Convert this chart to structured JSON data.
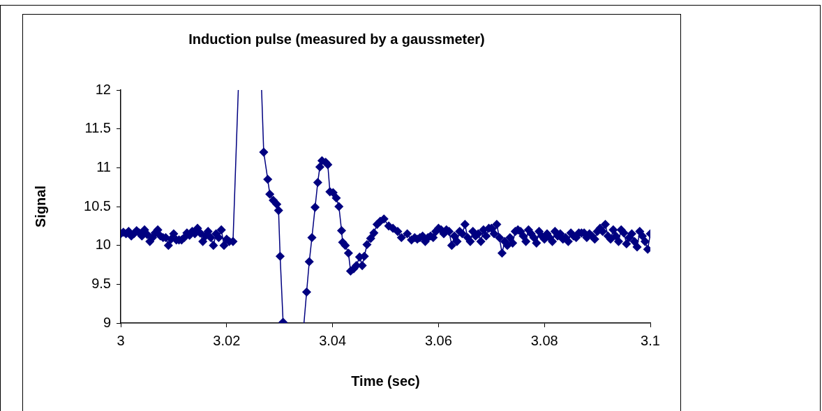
{
  "chart_data": {
    "type": "line",
    "title": "Induction pulse (measured by a gaussmeter)",
    "xlabel": "Time (sec)",
    "ylabel": "Signal",
    "xlim": [
      3,
      3.1
    ],
    "xticks": [
      3,
      3.02,
      3.04,
      3.06,
      3.08,
      3.1
    ],
    "ylim": [
      9,
      12
    ],
    "yticks": [
      9,
      9.5,
      10,
      10.5,
      11,
      11.5,
      12
    ],
    "grid": false,
    "legend": false,
    "marker": "diamond",
    "line_style": "solid",
    "series": [
      {
        "color": "#000080",
        "x": [
          3,
          3.0005,
          3.001,
          3.0015,
          3.002,
          3.0025,
          3.003,
          3.0035,
          3.004,
          3.0045,
          3.005,
          3.0055,
          3.006,
          3.0065,
          3.007,
          3.0075,
          3.008,
          3.0085,
          3.009,
          3.0095,
          3.01,
          3.0105,
          3.011,
          3.0115,
          3.012,
          3.0125,
          3.013,
          3.0135,
          3.014,
          3.0145,
          3.015,
          3.0155,
          3.016,
          3.0165,
          3.017,
          3.0175,
          3.018,
          3.0185,
          3.019,
          3.0195,
          3.02,
          3.0205,
          3.0212,
          3.0244,
          3.027,
          3.02776,
          3.02815,
          3.0288,
          3.02947,
          3.0298,
          3.0301,
          3.03066,
          3.0328,
          3.0351,
          3.0356,
          3.0361,
          3.0367,
          3.0372,
          3.0376,
          3.038,
          3.0387,
          3.0391,
          3.0395,
          3.0401,
          3.0407,
          3.0412,
          3.0417,
          3.0419,
          3.0424,
          3.043,
          3.0434,
          3.044,
          3.0445,
          3.0451,
          3.0456,
          3.046,
          3.0465,
          3.0472,
          3.0478,
          3.0484,
          3.049,
          3.0497,
          3.0506,
          3.0514,
          3.0523,
          3.053,
          3.0541,
          3.0549,
          3.0555,
          3.056,
          3.0565,
          3.057,
          3.0575,
          3.058,
          3.0585,
          3.059,
          3.0595,
          3.06,
          3.0605,
          3.061,
          3.0615,
          3.062,
          3.0625,
          3.063,
          3.0635,
          3.064,
          3.0645,
          3.065,
          3.0655,
          3.066,
          3.0665,
          3.067,
          3.0675,
          3.068,
          3.0685,
          3.069,
          3.0695,
          3.07,
          3.0705,
          3.071,
          3.0715,
          3.072,
          3.0725,
          3.073,
          3.0735,
          3.074,
          3.0745,
          3.075,
          3.0755,
          3.076,
          3.0765,
          3.077,
          3.0775,
          3.078,
          3.0785,
          3.079,
          3.0795,
          3.08,
          3.0805,
          3.081,
          3.0815,
          3.082,
          3.0825,
          3.083,
          3.0835,
          3.084,
          3.0845,
          3.085,
          3.0855,
          3.086,
          3.0865,
          3.087,
          3.0875,
          3.088,
          3.0885,
          3.089,
          3.0895,
          3.09,
          3.0905,
          3.091,
          3.0915,
          3.092,
          3.0925,
          3.093,
          3.0935,
          3.094,
          3.0945,
          3.095,
          3.0955,
          3.096,
          3.0965,
          3.097,
          3.0975,
          3.098,
          3.0985,
          3.099,
          3.0995,
          3.1
        ],
        "values": [
          10.15,
          10.17,
          10.15,
          10.18,
          10.12,
          10.15,
          10.19,
          10.16,
          10.12,
          10.2,
          10.14,
          10.05,
          10.1,
          10.16,
          10.2,
          10.12,
          10.1,
          10.1,
          10.0,
          10.08,
          10.15,
          10.07,
          10.07,
          10.07,
          10.1,
          10.16,
          10.13,
          10.18,
          10.15,
          10.22,
          10.16,
          10.05,
          10.12,
          10.18,
          10.1,
          10.0,
          10.15,
          10.1,
          10.2,
          10.0,
          10.08,
          10.05,
          10.05,
          null,
          11.2,
          10.85,
          10.66,
          10.58,
          10.53,
          10.45,
          9.86,
          9.01,
          null,
          9.4,
          9.79,
          10.1,
          10.49,
          10.81,
          11.01,
          11.09,
          11.07,
          11.04,
          10.69,
          10.68,
          10.61,
          10.5,
          10.19,
          10.04,
          10.0,
          9.9,
          9.67,
          9.7,
          9.74,
          9.85,
          9.74,
          9.86,
          10.01,
          10.09,
          10.16,
          10.27,
          10.31,
          10.34,
          10.25,
          10.22,
          10.18,
          10.1,
          10.15,
          10.07,
          10.1,
          10.08,
          10.1,
          10.12,
          10.05,
          10.1,
          10.12,
          10.1,
          10.18,
          10.22,
          10.2,
          10.15,
          10.2,
          10.18,
          10.0,
          10.12,
          10.05,
          10.18,
          10.15,
          10.27,
          10.1,
          10.05,
          10.18,
          10.12,
          10.15,
          10.05,
          10.2,
          10.12,
          10.22,
          10.22,
          10.15,
          10.27,
          10.1,
          9.9,
          10.05,
          10.0,
          10.1,
          10.03,
          10.18,
          10.2,
          10.18,
          10.12,
          10.05,
          10.2,
          10.15,
          10.1,
          10.03,
          10.18,
          10.12,
          10.08,
          10.15,
          10.1,
          10.05,
          10.18,
          10.12,
          10.15,
          10.08,
          10.1,
          10.05,
          10.16,
          10.12,
          10.1,
          10.16,
          10.16,
          10.16,
          10.1,
          10.15,
          10.12,
          10.08,
          10.18,
          10.22,
          10.18,
          10.27,
          10.12,
          10.08,
          10.2,
          10.12,
          10.05,
          10.2,
          10.16,
          10.02,
          10.1,
          10.15,
          10.05,
          9.98,
          10.18,
          10.12,
          10.05,
          9.95,
          10.15
        ]
      },
      {
        "color": "#000080",
        "marker": "none",
        "x": [
          3.0212,
          3.0222,
          3.0244,
          3.0266,
          3.027,
          3.0328,
          3.0346,
          3.0351
        ],
        "values": [
          10.05,
          12,
          null,
          12,
          11.2,
          null,
          9,
          9.4
        ]
      }
    ]
  }
}
